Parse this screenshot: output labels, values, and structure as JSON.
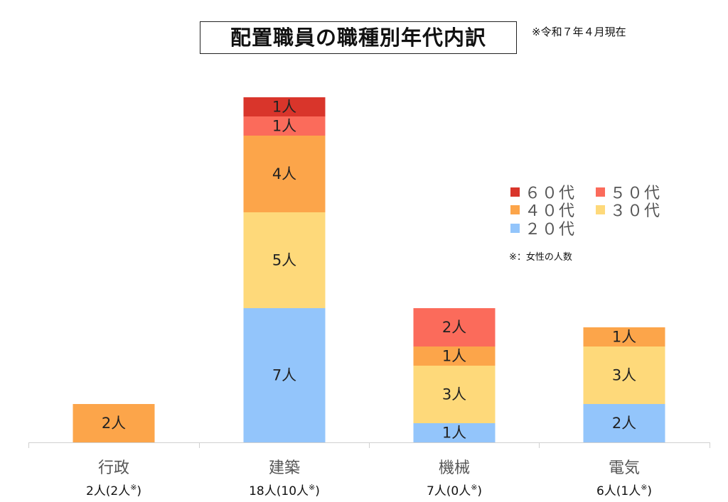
{
  "chart_data": {
    "type": "bar",
    "stacked": true,
    "title": "配置職員の職種別年代内訳",
    "note": "※令和７年４月現在",
    "categories": [
      "行政",
      "建築",
      "機械",
      "電気"
    ],
    "category_totals": [
      "2人(2人※)",
      "18人(10人※)",
      "7人(0人※)",
      "6人(1人※)"
    ],
    "unit": "人",
    "series": [
      {
        "name": "２０代",
        "color": "#93c5fb",
        "values": [
          0,
          7,
          1,
          2
        ]
      },
      {
        "name": "３０代",
        "color": "#fed97a",
        "values": [
          0,
          5,
          3,
          3
        ]
      },
      {
        "name": "４０代",
        "color": "#fca54a",
        "values": [
          2,
          4,
          1,
          1
        ]
      },
      {
        "name": "５０代",
        "color": "#fb6b5b",
        "values": [
          0,
          1,
          2,
          0
        ]
      },
      {
        "name": "６０代",
        "color": "#d9352b",
        "values": [
          0,
          1,
          0,
          0
        ]
      }
    ],
    "legend_order": [
      4,
      3,
      2,
      1,
      0
    ],
    "legend_note": "※：女性の人数",
    "legend_position": "right",
    "grid": false
  }
}
